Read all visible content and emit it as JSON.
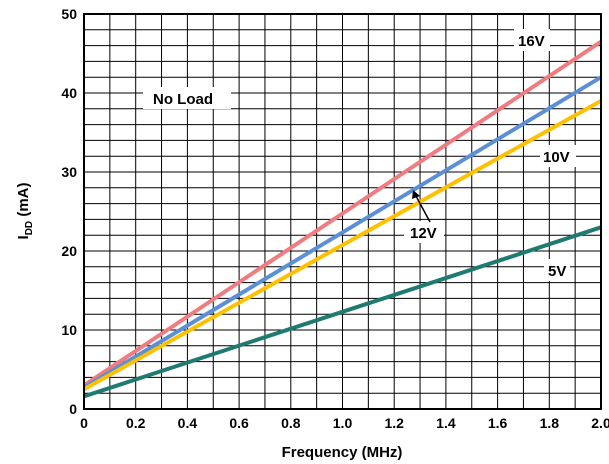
{
  "chart_data": {
    "type": "line",
    "title": "",
    "xlabel": "Frequency (MHz)",
    "ylabel_main": "I",
    "ylabel_sub": "DD",
    "ylabel_unit": " (mA)",
    "xlim": [
      0,
      2.0
    ],
    "ylim": [
      0,
      50
    ],
    "x_ticks": [
      "0",
      "0.2",
      "0.4",
      "0.6",
      "0.8",
      "1.0",
      "1.2",
      "1.4",
      "1.6",
      "1.8",
      "2.0"
    ],
    "y_ticks": [
      "0",
      "10",
      "20",
      "30",
      "40",
      "50"
    ],
    "grid": true,
    "annotation": "No Load",
    "series": [
      {
        "name": "16V",
        "color": "#f07c80",
        "x": [
          0,
          2.0
        ],
        "y": [
          3.0,
          46.5
        ]
      },
      {
        "name": "12V",
        "color": "#5b8fd6",
        "x": [
          0,
          2.0
        ],
        "y": [
          2.7,
          42.0
        ]
      },
      {
        "name": "10V",
        "color": "#ffc000",
        "x": [
          0,
          2.0
        ],
        "y": [
          2.5,
          39.0
        ]
      },
      {
        "name": "5V",
        "color": "#1f7a72",
        "x": [
          0,
          2.0
        ],
        "y": [
          1.6,
          23.0
        ]
      }
    ]
  }
}
